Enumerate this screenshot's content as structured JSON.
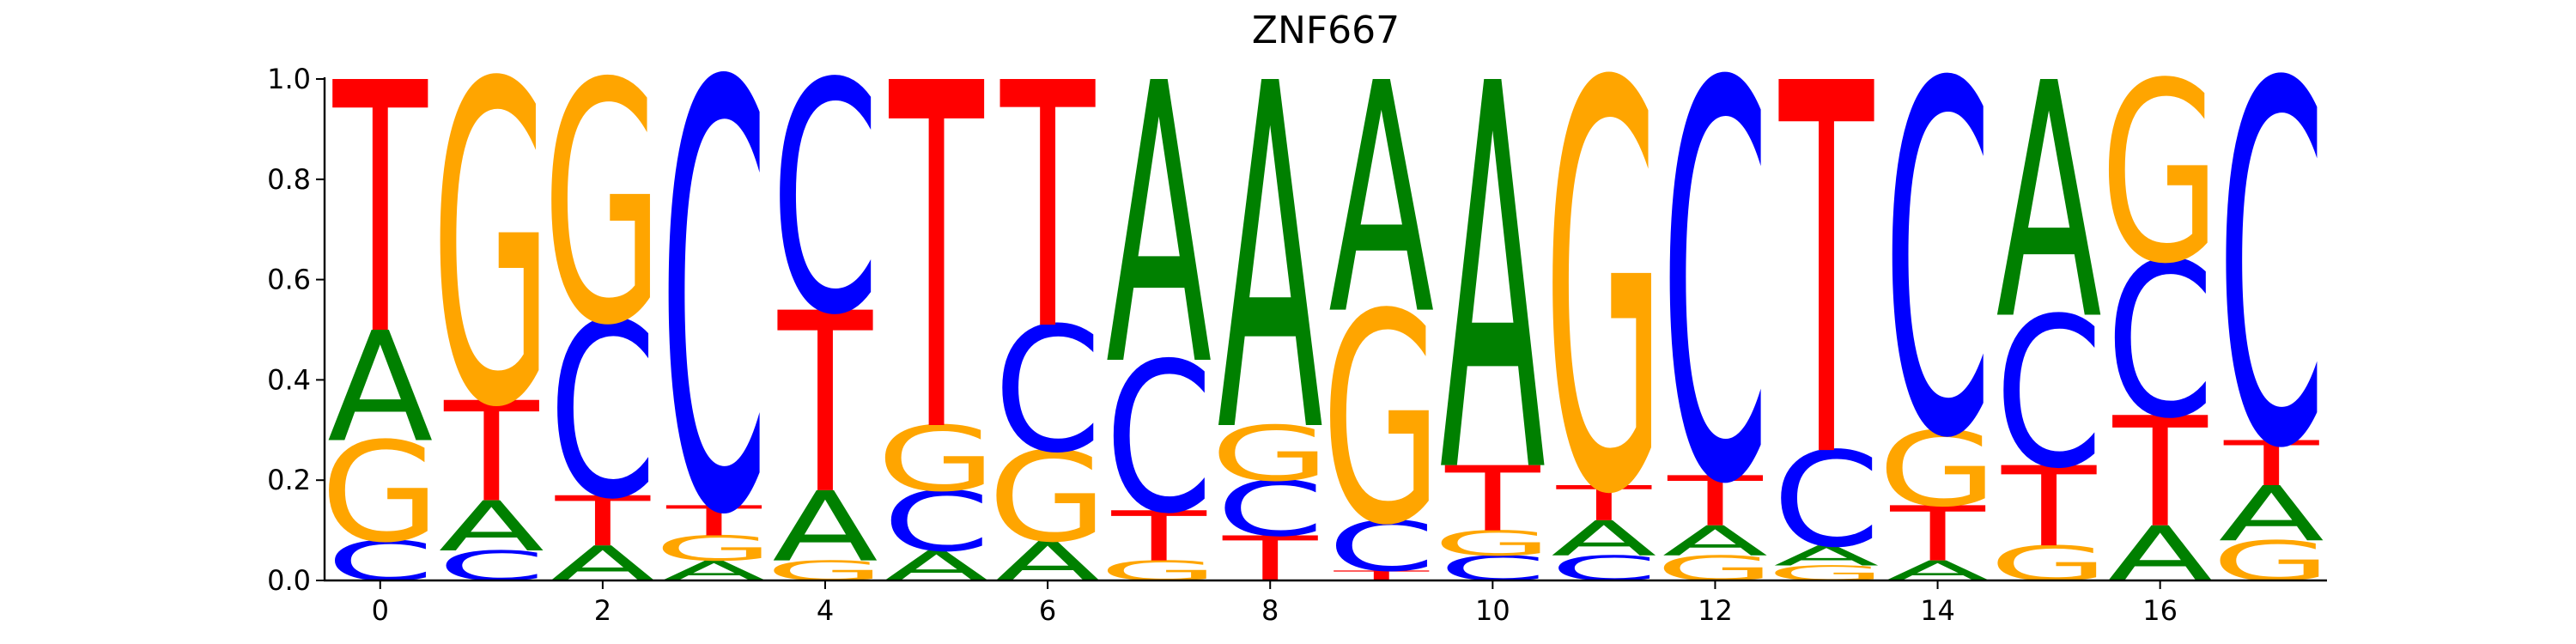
{
  "chart_data": {
    "type": "sequence-logo",
    "title": "ZNF667",
    "xlabel": "",
    "ylabel": "",
    "ylim": [
      0,
      1
    ],
    "xlim": [
      -0.5,
      17.5
    ],
    "yticks": [
      "0.0",
      "0.2",
      "0.4",
      "0.6",
      "0.8",
      "1.0"
    ],
    "xticks": [
      "0",
      "2",
      "4",
      "6",
      "8",
      "10",
      "12",
      "14",
      "16"
    ],
    "xtick_values": [
      0,
      2,
      4,
      6,
      8,
      10,
      12,
      14,
      16
    ],
    "ytick_values": [
      0,
      0.2,
      0.4,
      0.6,
      0.8,
      1.0
    ],
    "colors": {
      "A": "#008000",
      "C": "#0000ff",
      "G": "#ffa500",
      "T": "#ff0000"
    },
    "positions": [
      {
        "x": 0,
        "letters": [
          [
            "C",
            0.08
          ],
          [
            "G",
            0.2
          ],
          [
            "A",
            0.22
          ],
          [
            "T",
            0.5
          ]
        ]
      },
      {
        "x": 1,
        "letters": [
          [
            "C",
            0.06
          ],
          [
            "A",
            0.1
          ],
          [
            "T",
            0.2
          ],
          [
            "G",
            0.64
          ]
        ]
      },
      {
        "x": 2,
        "letters": [
          [
            "A",
            0.07
          ],
          [
            "T",
            0.1
          ],
          [
            "C",
            0.35
          ],
          [
            "G",
            0.48
          ]
        ]
      },
      {
        "x": 3,
        "letters": [
          [
            "A",
            0.04
          ],
          [
            "G",
            0.05
          ],
          [
            "T",
            0.06
          ],
          [
            "C",
            0.85
          ]
        ]
      },
      {
        "x": 4,
        "letters": [
          [
            "G",
            0.04
          ],
          [
            "A",
            0.14
          ],
          [
            "T",
            0.36
          ],
          [
            "C",
            0.46
          ]
        ]
      },
      {
        "x": 5,
        "letters": [
          [
            "A",
            0.06
          ],
          [
            "C",
            0.12
          ],
          [
            "G",
            0.13
          ],
          [
            "T",
            0.69
          ]
        ]
      },
      {
        "x": 6,
        "letters": [
          [
            "A",
            0.08
          ],
          [
            "G",
            0.18
          ],
          [
            "C",
            0.25
          ],
          [
            "T",
            0.49
          ]
        ]
      },
      {
        "x": 7,
        "letters": [
          [
            "G",
            0.04
          ],
          [
            "T",
            0.1
          ],
          [
            "C",
            0.3
          ],
          [
            "A",
            0.56
          ]
        ]
      },
      {
        "x": 8,
        "letters": [
          [
            "T",
            0.09
          ],
          [
            "C",
            0.11
          ],
          [
            "G",
            0.11
          ],
          [
            "A",
            0.69
          ]
        ]
      },
      {
        "x": 9,
        "letters": [
          [
            "T",
            0.02
          ],
          [
            "C",
            0.1
          ],
          [
            "G",
            0.42
          ],
          [
            "A",
            0.46
          ]
        ]
      },
      {
        "x": 10,
        "letters": [
          [
            "C",
            0.05
          ],
          [
            "G",
            0.05
          ],
          [
            "T",
            0.13
          ],
          [
            "A",
            0.77
          ]
        ]
      },
      {
        "x": 11,
        "letters": [
          [
            "C",
            0.05
          ],
          [
            "A",
            0.07
          ],
          [
            "T",
            0.07
          ],
          [
            "G",
            0.81
          ]
        ]
      },
      {
        "x": 12,
        "letters": [
          [
            "G",
            0.05
          ],
          [
            "A",
            0.06
          ],
          [
            "T",
            0.1
          ],
          [
            "C",
            0.79
          ]
        ]
      },
      {
        "x": 13,
        "letters": [
          [
            "G",
            0.03
          ],
          [
            "A",
            0.04
          ],
          [
            "C",
            0.19
          ],
          [
            "T",
            0.74
          ]
        ]
      },
      {
        "x": 14,
        "letters": [
          [
            "A",
            0.04
          ],
          [
            "T",
            0.11
          ],
          [
            "G",
            0.15
          ],
          [
            "C",
            0.7
          ]
        ]
      },
      {
        "x": 15,
        "letters": [
          [
            "G",
            0.07
          ],
          [
            "T",
            0.16
          ],
          [
            "C",
            0.3
          ],
          [
            "A",
            0.47
          ]
        ]
      },
      {
        "x": 16,
        "letters": [
          [
            "A",
            0.11
          ],
          [
            "T",
            0.22
          ],
          [
            "C",
            0.31
          ],
          [
            "G",
            0.36
          ]
        ]
      },
      {
        "x": 17,
        "letters": [
          [
            "G",
            0.08
          ],
          [
            "A",
            0.11
          ],
          [
            "T",
            0.09
          ],
          [
            "C",
            0.72
          ]
        ]
      }
    ]
  }
}
